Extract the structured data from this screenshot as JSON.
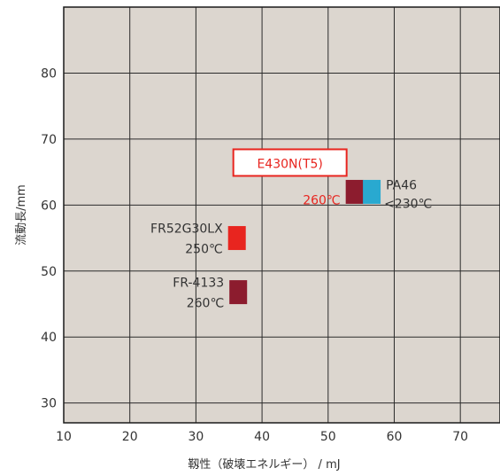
{
  "colors": {
    "background": "#dcd6cf",
    "grid": "#2b2b2b",
    "frame": "#1a1a1a",
    "text": "#333333",
    "highlight": "#e8251f",
    "dark_red": "#8c1c2e",
    "cyan": "#29a9d0"
  },
  "chart_data": {
    "type": "scatter",
    "xlabel": "靱性（破壊エネルギー） / mJ",
    "ylabel": "流動長/mm",
    "xlim": [
      10,
      76
    ],
    "ylim": [
      27,
      90
    ],
    "xticks": [
      10,
      20,
      30,
      40,
      50,
      60,
      70
    ],
    "yticks": [
      30,
      40,
      50,
      60,
      70,
      80
    ],
    "grid": true,
    "points": [
      {
        "x": 54.0,
        "y": 62.0,
        "color": "dark_red",
        "label": "E430N(T5)",
        "label2": "260℃",
        "boxed": true,
        "text_color": "highlight"
      },
      {
        "x": 56.6,
        "y": 62.0,
        "color": "cyan",
        "label": "PA46",
        "label2": "<230℃",
        "text_color": "text"
      },
      {
        "x": 36.2,
        "y": 55.0,
        "color": "highlight",
        "label": "FR52G30LX",
        "label2": "250℃",
        "text_color": "text"
      },
      {
        "x": 36.4,
        "y": 46.8,
        "color": "dark_red",
        "label": "FR-4133",
        "label2": "260℃",
        "text_color": "text"
      }
    ]
  }
}
